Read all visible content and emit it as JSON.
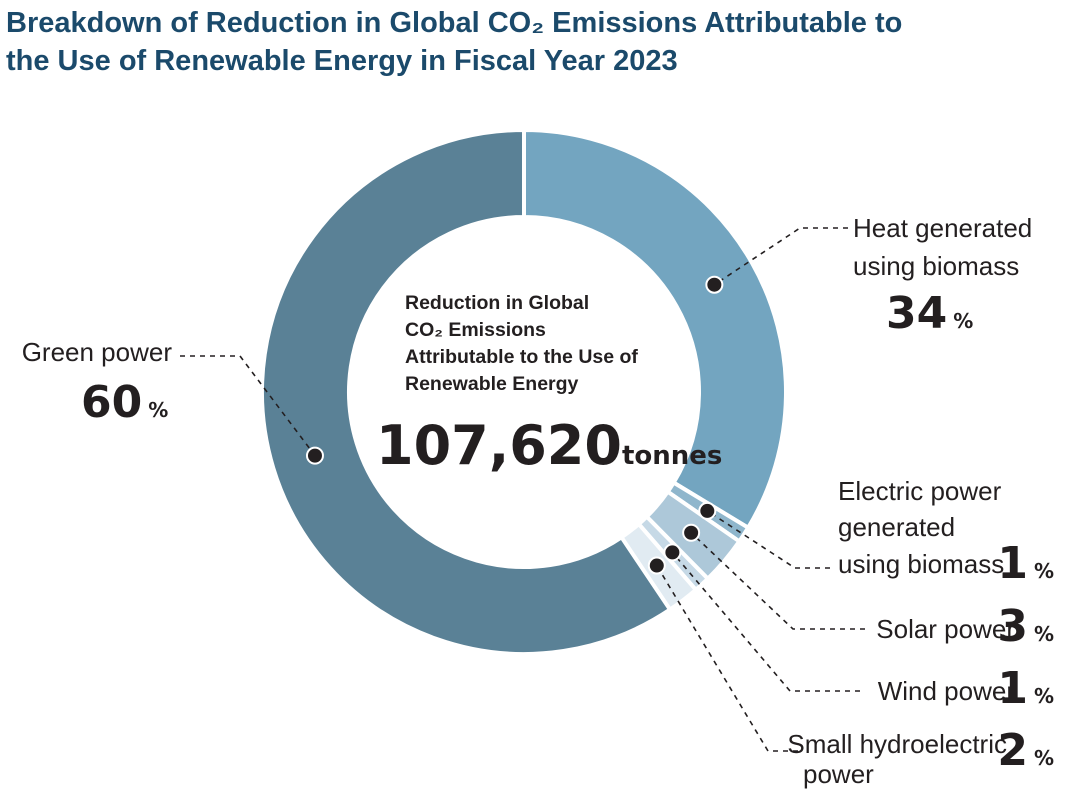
{
  "title_line1": "Breakdown of Reduction in Global CO₂ Emissions Attributable to",
  "title_line2": "the Use of Renewable Energy in Fiscal Year 2023",
  "center": {
    "label_lines": [
      "Reduction in Global",
      "CO₂ Emissions",
      "Attributable to the Use of",
      "Renewable Energy"
    ],
    "value": "107,620",
    "unit": "tonnes"
  },
  "chart_data": {
    "type": "pie",
    "title": "Breakdown of Reduction in Global CO₂ Emissions Attributable to the Use of Renewable Energy in Fiscal Year 2023",
    "total": 107620,
    "total_unit": "tonnes",
    "percent_sign": "%",
    "slices": [
      {
        "name": "Heat generated using biomass",
        "label_lines": [
          "Heat generated",
          "using biomass"
        ],
        "value": 34,
        "color": "#73a5c0"
      },
      {
        "name": "Electric power generated using biomass",
        "label_lines": [
          "Electric power",
          "generated",
          "using biomass"
        ],
        "value": 1,
        "color": "#8fb6cc"
      },
      {
        "name": "Solar power",
        "label_lines": [
          "Solar power"
        ],
        "value": 3,
        "color": "#adc8d9"
      },
      {
        "name": "Wind power",
        "label_lines": [
          "Wind power"
        ],
        "value": 1,
        "color": "#c6d9e6"
      },
      {
        "name": "Small hydroelectric power",
        "label_lines": [
          "Small hydroelectric",
          "power"
        ],
        "value": 2,
        "color": "#e1ebf2"
      },
      {
        "name": "Green power",
        "label_lines": [
          "Green power"
        ],
        "value": 60,
        "color": "#5a8196"
      }
    ]
  }
}
